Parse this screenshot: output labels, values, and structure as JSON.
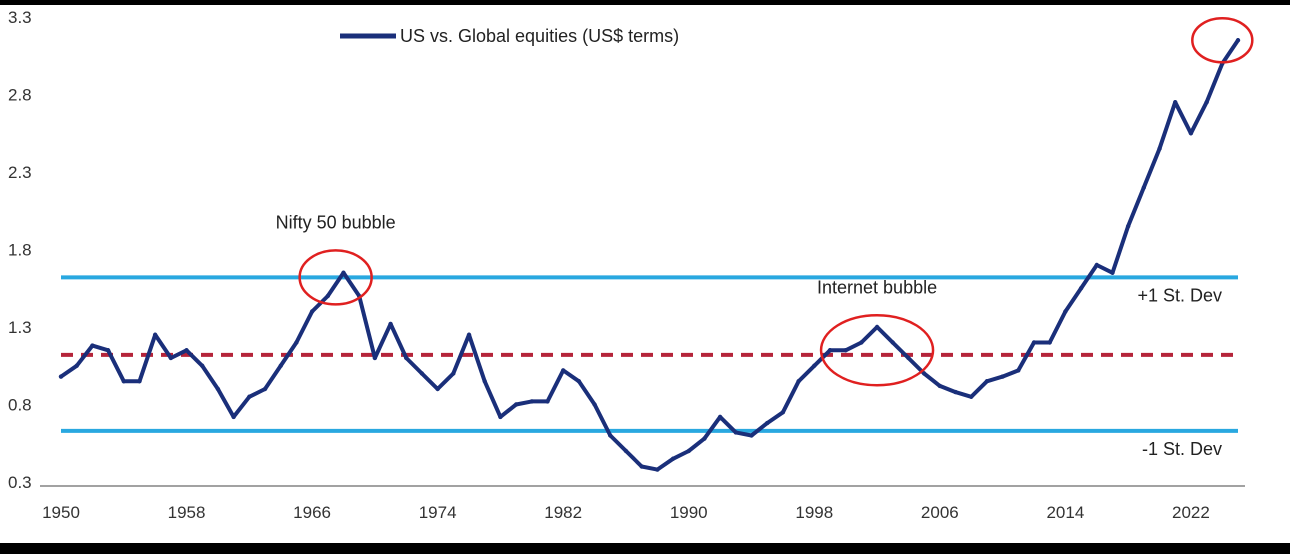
{
  "chart_data": {
    "type": "line",
    "title": "",
    "xlabel": "",
    "ylabel": "",
    "xlim": [
      1950,
      2025
    ],
    "ylim": [
      0.3,
      3.3
    ],
    "x_ticks": [
      "1950",
      "1958",
      "1966",
      "1974",
      "1982",
      "1990",
      "1998",
      "2006",
      "2014",
      "2022"
    ],
    "y_ticks": [
      "0.3",
      "0.8",
      "1.3",
      "1.8",
      "2.3",
      "2.8",
      "3.3"
    ],
    "grid": false,
    "legend_position": "top-center",
    "series": [
      {
        "name": "US vs. Global equities (US$ terms)",
        "color": "#1a2f7a",
        "x": [
          1950,
          1951,
          1952,
          1953,
          1954,
          1955,
          1956,
          1957,
          1958,
          1959,
          1960,
          1961,
          1962,
          1963,
          1964,
          1965,
          1966,
          1967,
          1968,
          1969,
          1970,
          1971,
          1972,
          1973,
          1974,
          1975,
          1976,
          1977,
          1978,
          1979,
          1980,
          1981,
          1982,
          1983,
          1984,
          1985,
          1986,
          1987,
          1988,
          1989,
          1990,
          1991,
          1992,
          1993,
          1994,
          1995,
          1996,
          1997,
          1998,
          1999,
          2000,
          2001,
          2002,
          2003,
          2004,
          2005,
          2006,
          2007,
          2008,
          2009,
          2010,
          2011,
          2012,
          2013,
          2014,
          2015,
          2016,
          2017,
          2018,
          2019,
          2020,
          2021,
          2022,
          2023,
          2024,
          2025
        ],
        "y": [
          0.98,
          1.05,
          1.18,
          1.15,
          0.95,
          0.95,
          1.25,
          1.1,
          1.15,
          1.05,
          0.9,
          0.72,
          0.85,
          0.9,
          1.05,
          1.2,
          1.4,
          1.5,
          1.65,
          1.5,
          1.1,
          1.32,
          1.1,
          1.0,
          0.9,
          1.0,
          1.25,
          0.95,
          0.72,
          0.8,
          0.82,
          0.82,
          1.02,
          0.95,
          0.8,
          0.6,
          0.5,
          0.4,
          0.38,
          0.45,
          0.5,
          0.58,
          0.72,
          0.62,
          0.6,
          0.68,
          0.75,
          0.95,
          1.05,
          1.15,
          1.15,
          1.2,
          1.3,
          1.2,
          1.1,
          1.0,
          0.92,
          0.88,
          0.85,
          0.95,
          0.98,
          1.02,
          1.2,
          1.2,
          1.4,
          1.55,
          1.7,
          1.65,
          1.95,
          2.2,
          2.45,
          2.75,
          2.55,
          2.75,
          3.0,
          3.15
        ]
      }
    ],
    "reference_lines": [
      {
        "label": "+1 St. Dev",
        "y": 1.62,
        "color": "#29a8e0",
        "style": "solid"
      },
      {
        "label": "",
        "y": 1.12,
        "color": "#b5243a",
        "style": "dashed"
      },
      {
        "label": "-1 St. Dev",
        "y": 0.63,
        "color": "#29a8e0",
        "style": "solid"
      }
    ],
    "annotations": [
      {
        "text": "Nifty 50 bubble",
        "x": 1967.5,
        "y": 1.62
      },
      {
        "text": "Internet bubble",
        "x": 2002,
        "y": 1.15
      },
      {
        "text": "",
        "x": 2024,
        "y": 3.15
      }
    ],
    "highlight_color": "#e02020"
  }
}
